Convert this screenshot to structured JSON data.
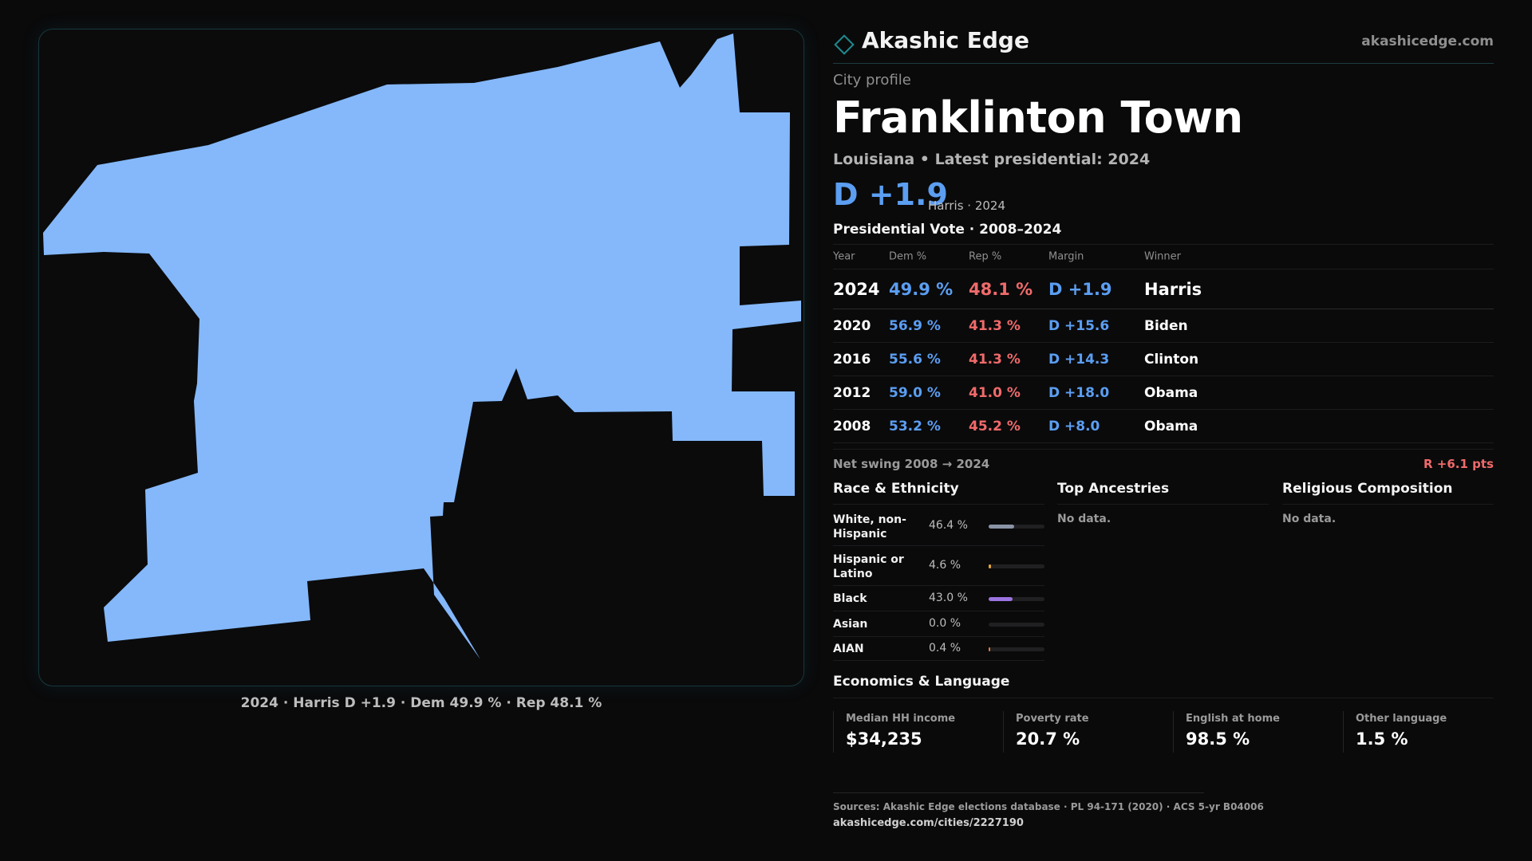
{
  "brand": {
    "name": "Akashic Edge",
    "url": "akashicedge.com",
    "logo_icon": "diamond-outline-icon",
    "accent": "#1f8a8f"
  },
  "map": {
    "fill_color": "#84b8fb",
    "caption": "2024 · Harris D +1.9 · Dem 49.9 % · Rep 48.1 %"
  },
  "profile": {
    "kicker": "City profile",
    "city": "Franklinton Town",
    "subline": "Louisiana • Latest presidential: 2024",
    "headline_margin": "D +1.9",
    "headline_note": "Harris · 2024"
  },
  "vote": {
    "title": "Presidential Vote · 2008–2024",
    "headers": {
      "year": "Year",
      "dem": "Dem %",
      "rep": "Rep %",
      "margin": "Margin",
      "winner": "Winner"
    },
    "rows": [
      {
        "year": "2024",
        "dem": "49.9 %",
        "rep": "48.1 %",
        "margin": "D +1.9",
        "winner": "Harris"
      },
      {
        "year": "2020",
        "dem": "56.9 %",
        "rep": "41.3 %",
        "margin": "D +15.6",
        "winner": "Biden"
      },
      {
        "year": "2016",
        "dem": "55.6 %",
        "rep": "41.3 %",
        "margin": "D +14.3",
        "winner": "Clinton"
      },
      {
        "year": "2012",
        "dem": "59.0 %",
        "rep": "41.0 %",
        "margin": "D +18.0",
        "winner": "Obama"
      },
      {
        "year": "2008",
        "dem": "53.2 %",
        "rep": "45.2 %",
        "margin": "D +8.0",
        "winner": "Obama"
      }
    ],
    "swing_label": "Net swing 2008 → 2024",
    "swing_value": "R +6.1 pts"
  },
  "race": {
    "title": "Race & Ethnicity",
    "items": [
      {
        "label": "White, non-Hispanic",
        "pct": "46.4 %",
        "share": 0.464,
        "color": "#8a94a6"
      },
      {
        "label": "Hispanic or Latino",
        "pct": "4.6 %",
        "share": 0.046,
        "color": "#e5a53a"
      },
      {
        "label": "Black",
        "pct": "43.0 %",
        "share": 0.43,
        "color": "#9b74e0"
      },
      {
        "label": "Asian",
        "pct": "0.0 %",
        "share": 0.0,
        "color": "#4fb3c0"
      },
      {
        "label": "AIAN",
        "pct": "0.4 %",
        "share": 0.004,
        "color": "#e07a3a"
      }
    ]
  },
  "ancestries": {
    "title": "Top Ancestries",
    "empty": "No data."
  },
  "religion": {
    "title": "Religious Composition",
    "empty": "No data."
  },
  "economics": {
    "title": "Economics & Language",
    "cells": [
      {
        "label": "Median HH income",
        "value": "$34,235"
      },
      {
        "label": "Poverty rate",
        "value": "20.7 %"
      },
      {
        "label": "English at home",
        "value": "98.5 %"
      },
      {
        "label": "Other language",
        "value": "1.5 %"
      }
    ]
  },
  "sources": {
    "text": "Sources: Akashic Edge elections database · PL 94-171 (2020) · ACS 5-yr B04006",
    "url": "akashicedge.com/cities/2227190"
  }
}
